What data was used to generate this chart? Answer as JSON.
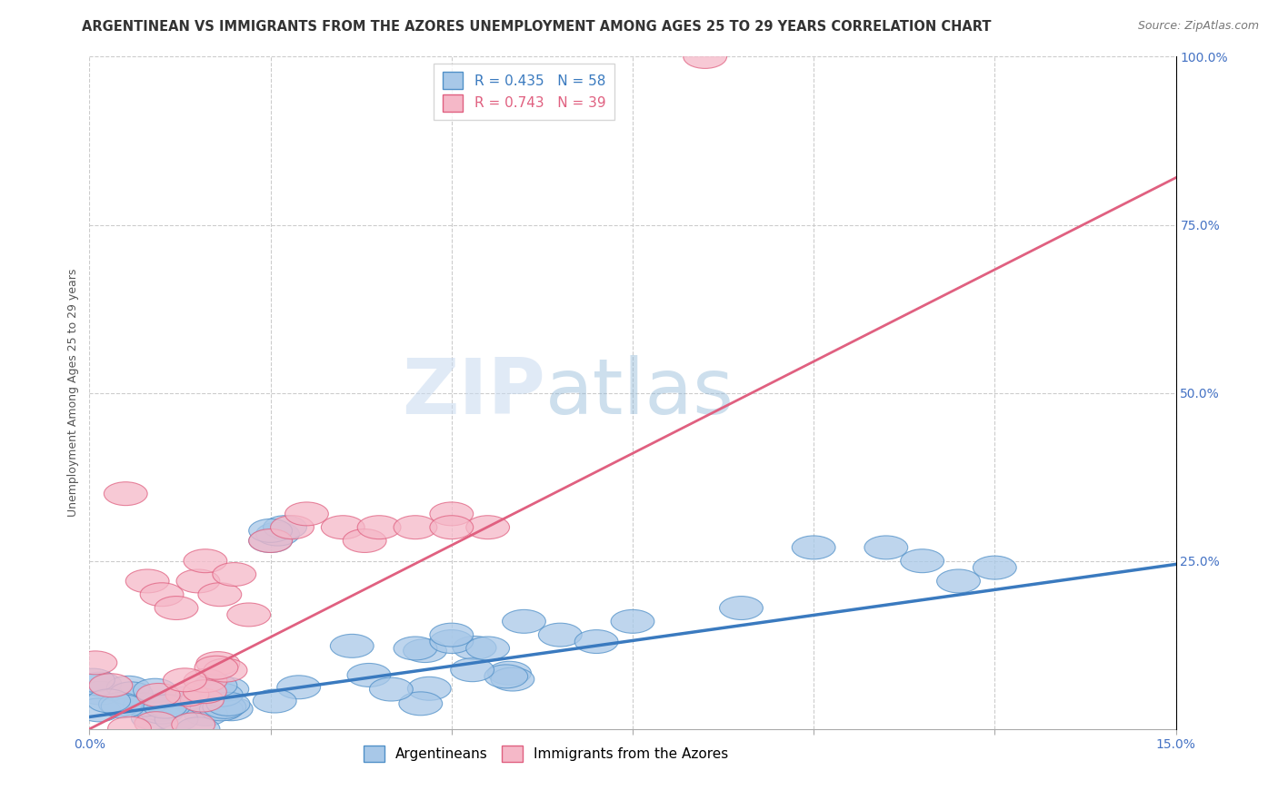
{
  "title": "ARGENTINEAN VS IMMIGRANTS FROM THE AZORES UNEMPLOYMENT AMONG AGES 25 TO 29 YEARS CORRELATION CHART",
  "source": "Source: ZipAtlas.com",
  "ylabel": "Unemployment Among Ages 25 to 29 years",
  "xlim": [
    0,
    0.15
  ],
  "ylim": [
    0,
    1.0
  ],
  "x_ticks": [
    0.0,
    0.025,
    0.05,
    0.075,
    0.1,
    0.125,
    0.15
  ],
  "x_tick_labels": [
    "0.0%",
    "",
    "",
    "",
    "",
    "",
    "15.0%"
  ],
  "y_ticks_right": [
    0.0,
    0.25,
    0.5,
    0.75,
    1.0
  ],
  "y_tick_labels_right": [
    "",
    "25.0%",
    "50.0%",
    "75.0%",
    "100.0%"
  ],
  "series1_name": "Argentineans",
  "series1_color": "#a8c8e8",
  "series1_edge_color": "#5090c8",
  "series1_line_color": "#3a7abf",
  "series1_R": 0.435,
  "series1_N": 58,
  "series2_name": "Immigrants from the Azores",
  "series2_color": "#f5b8c8",
  "series2_edge_color": "#e06080",
  "series2_line_color": "#e06080",
  "series2_R": 0.743,
  "series2_N": 39,
  "line1_x0": 0.0,
  "line1_y0": 0.018,
  "line1_x1": 0.15,
  "line1_y1": 0.245,
  "line2_x0": 0.0,
  "line2_y0": 0.0,
  "line2_x1": 0.15,
  "line2_y1": 0.82,
  "watermark_zip": "ZIP",
  "watermark_atlas": "atlas",
  "grid_color": "#cccccc",
  "background_color": "#ffffff",
  "title_fontsize": 10.5,
  "source_fontsize": 9,
  "label_fontsize": 9,
  "tick_fontsize": 10,
  "legend_fontsize": 11
}
